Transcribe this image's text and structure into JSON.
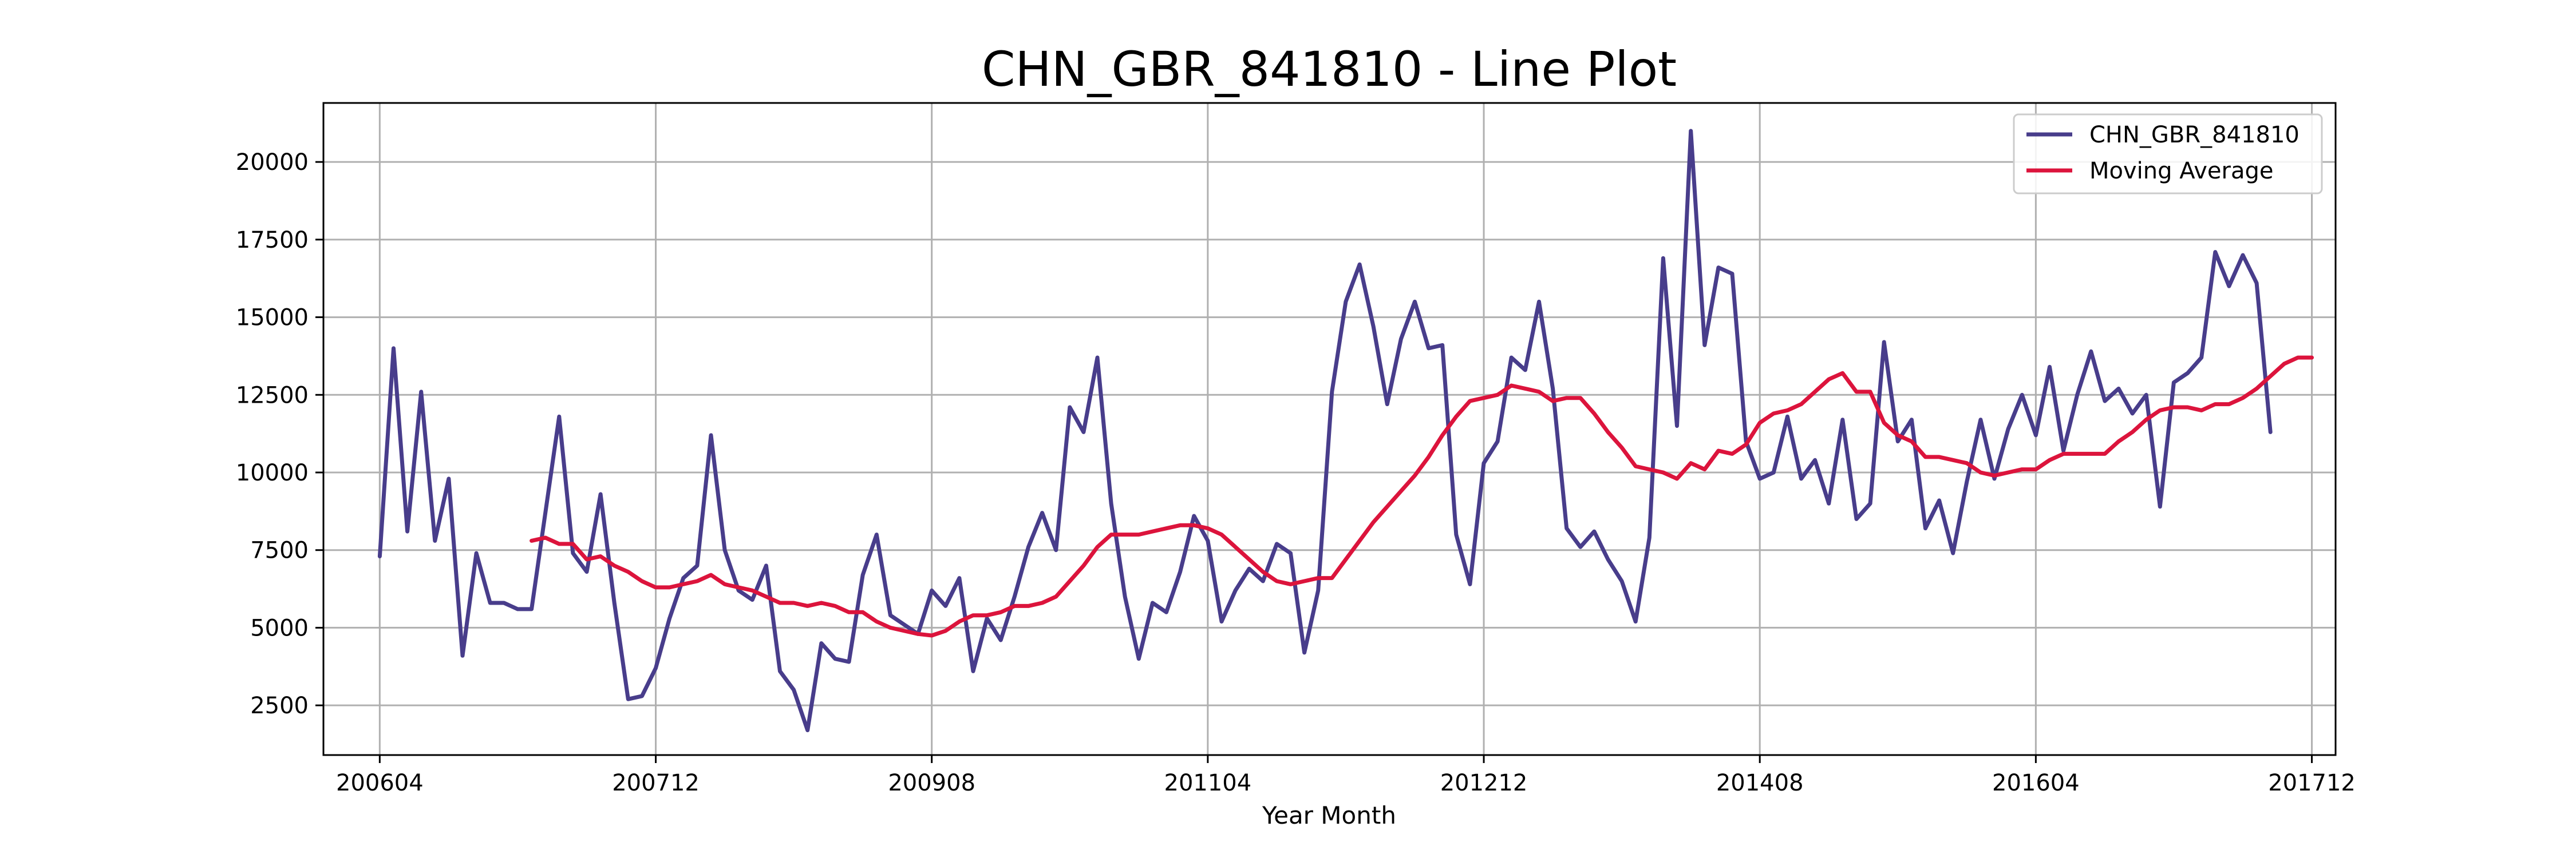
{
  "chart_data": {
    "type": "line",
    "title": "CHN_GBR_841810 - Line Plot",
    "xlabel": "Year Month",
    "ylabel": "",
    "xlim": [
      2005.91,
      2018.06
    ],
    "ylim": [
      900,
      21900
    ],
    "grid": true,
    "legend_position": "top-right",
    "x_ticks": [
      {
        "label": "200604",
        "value": 2006.25
      },
      {
        "label": "200712",
        "value": 2007.9167
      },
      {
        "label": "200908",
        "value": 2009.5833
      },
      {
        "label": "201104",
        "value": 2011.25
      },
      {
        "label": "201212",
        "value": 2012.9167
      },
      {
        "label": "201408",
        "value": 2014.5833
      },
      {
        "label": "201604",
        "value": 2016.25
      },
      {
        "label": "201712",
        "value": 2017.9167
      }
    ],
    "y_ticks": [
      2500,
      5000,
      7500,
      10000,
      12500,
      15000,
      17500,
      20000
    ],
    "x_start": 2006.25,
    "x_step": 0.08333333,
    "series": [
      {
        "name": "CHN_GBR_841810",
        "color": "#483d8b",
        "values": [
          7300,
          14000,
          8100,
          12600,
          7800,
          9800,
          4100,
          7400,
          5800,
          5800,
          5600,
          5600,
          8700,
          11800,
          7400,
          6800,
          9300,
          5800,
          2700,
          2800,
          3700,
          5300,
          6600,
          7000,
          11200,
          7500,
          6200,
          5900,
          7000,
          3600,
          3000,
          1700,
          4500,
          4000,
          3900,
          6700,
          8000,
          5400,
          5100,
          4800,
          6200,
          5700,
          6600,
          3600,
          5300,
          4600,
          6000,
          7600,
          8700,
          7500,
          12100,
          11300,
          13700,
          9000,
          6000,
          4000,
          5800,
          5500,
          6800,
          8600,
          7800,
          5200,
          6200,
          6900,
          6500,
          7700,
          7400,
          4200,
          6200,
          12600,
          15500,
          16700,
          14700,
          12200,
          14300,
          15500,
          14000,
          14100,
          8000,
          6400,
          10300,
          11000,
          13700,
          13300,
          15500,
          12700,
          8200,
          7600,
          8100,
          7200,
          6500,
          5200,
          7900,
          16900,
          11500,
          21000,
          14100,
          16600,
          16400,
          11000,
          9800,
          10000,
          11800,
          9800,
          10400,
          9000,
          11700,
          8500,
          9000,
          14200,
          11000,
          11700,
          8200,
          9100,
          7400,
          9700,
          11700,
          9800,
          11400,
          12500,
          11200,
          13400,
          10700,
          12500,
          13900,
          12300,
          12700,
          11900,
          12500,
          8900,
          12900,
          13200,
          13700,
          17100,
          16000,
          17000,
          16100,
          11300
        ]
      },
      {
        "name": "Moving Average",
        "color": "#dc143c",
        "start_index": 11,
        "values": [
          7800,
          7900,
          7700,
          7700,
          7200,
          7300,
          7000,
          6800,
          6500,
          6300,
          6300,
          6400,
          6500,
          6700,
          6400,
          6300,
          6200,
          6000,
          5800,
          5800,
          5700,
          5800,
          5700,
          5500,
          5500,
          5200,
          5000,
          4900,
          4800,
          4750,
          4900,
          5200,
          5400,
          5400,
          5500,
          5700,
          5700,
          5800,
          6000,
          6500,
          7000,
          7600,
          8000,
          8000,
          8000,
          8100,
          8200,
          8300,
          8300,
          8200,
          8000,
          7600,
          7200,
          6800,
          6500,
          6400,
          6500,
          6600,
          6600,
          7200,
          7800,
          8400,
          8900,
          9400,
          9900,
          10500,
          11200,
          11800,
          12300,
          12400,
          12500,
          12800,
          12700,
          12600,
          12300,
          12400,
          12400,
          11900,
          11300,
          10800,
          10200,
          10100,
          10000,
          9800,
          10300,
          10100,
          10700,
          10600,
          10900,
          11600,
          11900,
          12000,
          12200,
          12600,
          13000,
          13200,
          12600,
          12600,
          11600,
          11200,
          11000,
          10500,
          10500,
          10400,
          10300,
          10000,
          9900,
          10000,
          10100,
          10100,
          10400,
          10600,
          10600,
          10600,
          10600,
          11000,
          11300,
          11700,
          12000,
          12100,
          12100,
          12000,
          12200,
          12200,
          12400,
          12700,
          13100,
          13500,
          13700,
          13700
        ]
      }
    ]
  }
}
